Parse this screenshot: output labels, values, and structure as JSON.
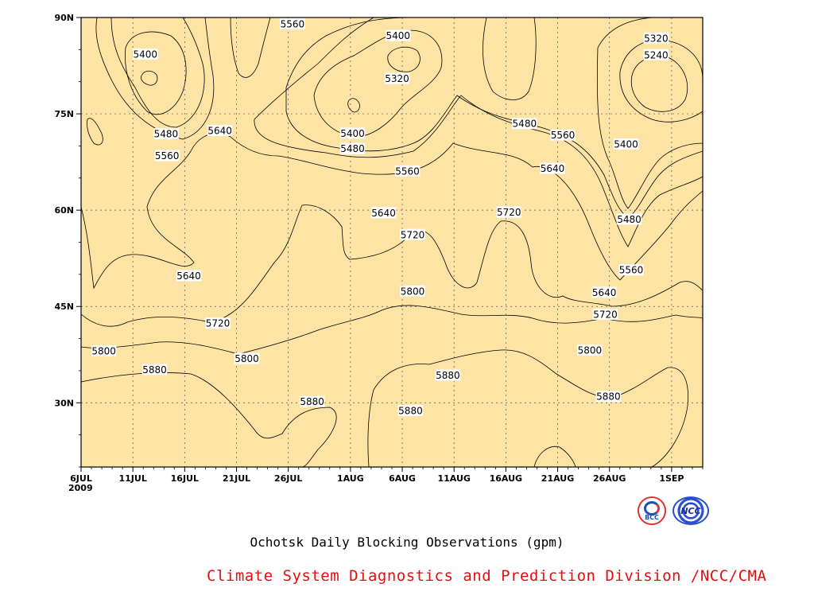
{
  "chart_data": {
    "type": "heatmap",
    "title": "Ochotsk Daily Blocking Observations (gpm)",
    "credit": "Climate System Diagnostics and Prediction Division /NCC/CMA",
    "x_tick_labels": [
      "6JUL",
      "11JUL",
      "16JUL",
      "21JUL",
      "26JUL",
      "1AUG",
      "6AUG",
      "11AUG",
      "16AUG",
      "21AUG",
      "26AUG",
      "1SEP"
    ],
    "x_tick_days": [
      0,
      5,
      10,
      15,
      20,
      26,
      31,
      36,
      41,
      46,
      51,
      57
    ],
    "x_year_label": "2009",
    "x_range_days": [
      0,
      60
    ],
    "y_tick_labels": [
      "30N",
      "45N",
      "60N",
      "75N",
      "90N"
    ],
    "y_tick_values": [
      30,
      45,
      60,
      75,
      90
    ],
    "ylim": [
      20,
      90
    ],
    "grid": true,
    "contour_levels": [
      5240,
      5320,
      5400,
      5480,
      5560,
      5640,
      5720,
      5800,
      5880
    ],
    "fill_colors": {
      "below_5240": "#0a14d0",
      "5240_5320": "#4050e8",
      "5320_5400": "#5a8ee6",
      "5400_5480": "#6ec8fa",
      "5480_5560": "#fafa6e",
      "5560_5640": "#fde3a4",
      "5640_5720": "#fca36a",
      "5720_5800": "#fc7a48",
      "5800_5880": "#f46c7a",
      "above_5880": "#f03a4c"
    },
    "contour_labels": [
      {
        "value": "5560",
        "day": 20.4,
        "lat": 89
      },
      {
        "value": "5400",
        "day": 6.2,
        "lat": 84.3
      },
      {
        "value": "5400",
        "day": 30.6,
        "lat": 87.2
      },
      {
        "value": "5320",
        "day": 30.5,
        "lat": 80.5
      },
      {
        "value": "5320",
        "day": 55.5,
        "lat": 86.8
      },
      {
        "value": "5240",
        "day": 55.5,
        "lat": 84.2
      },
      {
        "value": "5480",
        "day": 8.2,
        "lat": 71.9
      },
      {
        "value": "5560",
        "day": 8.3,
        "lat": 68.5
      },
      {
        "value": "5640",
        "day": 13.4,
        "lat": 72.4
      },
      {
        "value": "5400",
        "day": 26.2,
        "lat": 72.0
      },
      {
        "value": "5480",
        "day": 26.2,
        "lat": 69.6
      },
      {
        "value": "5480",
        "day": 42.8,
        "lat": 73.5
      },
      {
        "value": "5560",
        "day": 46.5,
        "lat": 71.7
      },
      {
        "value": "5400",
        "day": 52.6,
        "lat": 70.3
      },
      {
        "value": "5560",
        "day": 31.5,
        "lat": 66.1
      },
      {
        "value": "5640",
        "day": 45.5,
        "lat": 66.5
      },
      {
        "value": "5480",
        "day": 52.9,
        "lat": 58.6
      },
      {
        "value": "5640",
        "day": 29.2,
        "lat": 59.6
      },
      {
        "value": "5720",
        "day": 41.3,
        "lat": 59.7
      },
      {
        "value": "5720",
        "day": 32.0,
        "lat": 56.2
      },
      {
        "value": "5560",
        "day": 53.1,
        "lat": 50.7
      },
      {
        "value": "5640",
        "day": 10.4,
        "lat": 49.8
      },
      {
        "value": "5800",
        "day": 32.0,
        "lat": 47.4
      },
      {
        "value": "5640",
        "day": 50.5,
        "lat": 47.2
      },
      {
        "value": "5720",
        "day": 50.6,
        "lat": 43.8
      },
      {
        "value": "5720",
        "day": 13.2,
        "lat": 42.4
      },
      {
        "value": "5800",
        "day": 2.2,
        "lat": 38.1
      },
      {
        "value": "5800",
        "day": 16.0,
        "lat": 36.9
      },
      {
        "value": "5800",
        "day": 49.1,
        "lat": 38.2
      },
      {
        "value": "5880",
        "day": 7.1,
        "lat": 35.2
      },
      {
        "value": "5880",
        "day": 35.4,
        "lat": 34.3
      },
      {
        "value": "5880",
        "day": 50.9,
        "lat": 31.0
      },
      {
        "value": "5880",
        "day": 22.3,
        "lat": 30.2
      },
      {
        "value": "5880",
        "day": 31.8,
        "lat": 28.8
      }
    ]
  },
  "logos": [
    "BCC",
    "NCC"
  ]
}
